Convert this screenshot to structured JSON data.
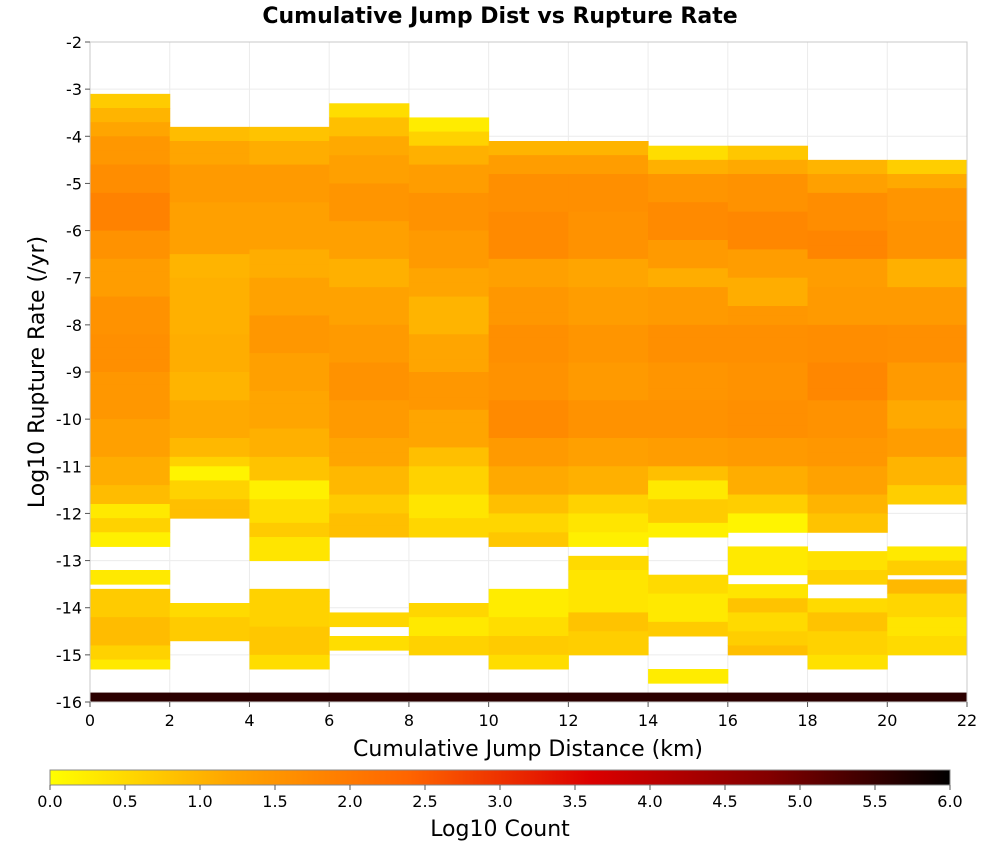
{
  "chart_data": {
    "type": "heatmap",
    "title": "Cumulative Jump Dist vs Rupture Rate",
    "xlabel": "Cumulative Jump Distance (km)",
    "ylabel": "Log10 Rupture Rate (/yr)",
    "xlim": [
      0,
      22
    ],
    "ylim": [
      -16,
      -2
    ],
    "x_ticks": [
      "0",
      "2",
      "4",
      "6",
      "8",
      "10",
      "12",
      "14",
      "16",
      "18",
      "20",
      "22"
    ],
    "y_ticks": [
      "-2",
      "-3",
      "-4",
      "-5",
      "-6",
      "-7",
      "-8",
      "-9",
      "-10",
      "-11",
      "-12",
      "-13",
      "-14",
      "-15",
      "-16"
    ],
    "x_bin_width": 2,
    "y_bin_height": 0.25,
    "grid": true,
    "colorbar": {
      "label": "Log10 Count",
      "range": [
        0,
        6
      ],
      "ticks": [
        "0.0",
        "0.5",
        "1.0",
        "1.5",
        "2.0",
        "2.5",
        "3.0",
        "3.5",
        "4.0",
        "4.5",
        "5.0",
        "5.5",
        "6.0"
      ],
      "colors": [
        "#ffff00",
        "#ffa500",
        "#ff6400",
        "#dc0000",
        "#820000",
        "#000000"
      ]
    },
    "bottom_row": {
      "y_range": [
        -16,
        -15.8
      ],
      "value": 5.6
    },
    "columns": [
      {
        "x_range": [
          0,
          2
        ],
        "runs": [
          [
            -3.4,
            0.3,
            0.7
          ],
          [
            -3.7,
            0.3,
            1.0
          ],
          [
            -4.0,
            0.3,
            1.2
          ],
          [
            -4.6,
            0.6,
            1.45
          ],
          [
            -5.2,
            0.6,
            1.65
          ],
          [
            -6.0,
            0.8,
            1.85
          ],
          [
            -6.6,
            0.6,
            1.55
          ],
          [
            -7.4,
            0.8,
            1.35
          ],
          [
            -8.2,
            0.8,
            1.55
          ],
          [
            -9.0,
            0.8,
            1.6
          ],
          [
            -10.0,
            1.0,
            1.45
          ],
          [
            -10.8,
            0.8,
            1.3
          ],
          [
            -11.4,
            0.6,
            1.1
          ],
          [
            -11.8,
            0.4,
            0.9
          ],
          [
            -12.1,
            0.3,
            0.3
          ],
          [
            -12.4,
            0.3,
            0.6
          ],
          [
            -12.7,
            0.3,
            0.2
          ],
          [
            -13.5,
            0.3,
            0.3
          ],
          [
            -14.2,
            0.6,
            0.7
          ],
          [
            -14.8,
            0.6,
            0.9
          ],
          [
            -15.1,
            0.3,
            0.6
          ],
          [
            -15.3,
            0.2,
            0.3
          ]
        ]
      },
      {
        "x_range": [
          2,
          4
        ],
        "runs": [
          [
            -4.1,
            0.3,
            0.9
          ],
          [
            -4.6,
            0.5,
            1.2
          ],
          [
            -5.4,
            0.8,
            1.4
          ],
          [
            -6.5,
            1.1,
            1.3
          ],
          [
            -7.0,
            0.5,
            1.0
          ],
          [
            -8.2,
            1.2,
            1.05
          ],
          [
            -9.0,
            0.8,
            1.1
          ],
          [
            -9.6,
            0.6,
            1.0
          ],
          [
            -10.4,
            0.8,
            1.15
          ],
          [
            -10.8,
            0.4,
            0.95
          ],
          [
            -11.0,
            0.2,
            0.6
          ],
          [
            -11.3,
            0.3,
            0.15
          ],
          [
            -11.7,
            0.4,
            0.6
          ],
          [
            -12.1,
            0.4,
            0.85
          ],
          [
            -14.2,
            0.3,
            0.5
          ],
          [
            -14.7,
            0.5,
            0.7
          ]
        ]
      },
      {
        "x_range": [
          4,
          6
        ],
        "runs": [
          [
            -4.1,
            0.3,
            0.8
          ],
          [
            -4.6,
            0.5,
            1.1
          ],
          [
            -5.4,
            0.8,
            1.4
          ],
          [
            -6.4,
            1.0,
            1.3
          ],
          [
            -7.0,
            0.6,
            1.1
          ],
          [
            -7.8,
            0.8,
            1.25
          ],
          [
            -8.6,
            0.8,
            1.45
          ],
          [
            -9.4,
            0.8,
            1.3
          ],
          [
            -10.2,
            0.8,
            1.2
          ],
          [
            -10.8,
            0.6,
            1.05
          ],
          [
            -11.3,
            0.5,
            0.8
          ],
          [
            -11.7,
            0.4,
            0.2
          ],
          [
            -12.2,
            0.5,
            0.45
          ],
          [
            -12.5,
            0.3,
            0.7
          ],
          [
            -13.0,
            0.5,
            0.35
          ],
          [
            -14.4,
            0.8,
            0.6
          ],
          [
            -15.0,
            0.6,
            0.75
          ],
          [
            -15.3,
            0.3,
            0.45
          ]
        ]
      },
      {
        "x_range": [
          6,
          8
        ],
        "runs": [
          [
            -3.6,
            0.3,
            0.45
          ],
          [
            -4.0,
            0.4,
            0.85
          ],
          [
            -4.4,
            0.4,
            1.15
          ],
          [
            -5.0,
            0.6,
            1.3
          ],
          [
            -5.8,
            0.8,
            1.5
          ],
          [
            -6.6,
            0.8,
            1.3
          ],
          [
            -7.2,
            0.6,
            1.05
          ],
          [
            -8.0,
            0.8,
            1.25
          ],
          [
            -8.8,
            0.8,
            1.4
          ],
          [
            -9.6,
            0.8,
            1.55
          ],
          [
            -10.4,
            0.8,
            1.4
          ],
          [
            -11.0,
            0.6,
            1.2
          ],
          [
            -11.6,
            0.6,
            0.95
          ],
          [
            -12.0,
            0.4,
            0.7
          ],
          [
            -12.5,
            0.5,
            0.85
          ],
          [
            -14.4,
            0.3,
            0.55
          ],
          [
            -14.9,
            0.3,
            0.45
          ]
        ]
      },
      {
        "x_range": [
          8,
          10
        ],
        "runs": [
          [
            -3.9,
            0.3,
            0.25
          ],
          [
            -4.2,
            0.3,
            0.6
          ],
          [
            -4.6,
            0.4,
            1.05
          ],
          [
            -5.2,
            0.6,
            1.35
          ],
          [
            -6.0,
            0.8,
            1.55
          ],
          [
            -6.8,
            0.8,
            1.4
          ],
          [
            -7.4,
            0.6,
            1.2
          ],
          [
            -8.2,
            0.8,
            1.0
          ],
          [
            -9.0,
            0.8,
            1.2
          ],
          [
            -9.8,
            0.8,
            1.45
          ],
          [
            -10.6,
            0.8,
            1.2
          ],
          [
            -11.0,
            0.4,
            0.85
          ],
          [
            -11.6,
            0.6,
            0.6
          ],
          [
            -12.1,
            0.5,
            0.35
          ],
          [
            -12.5,
            0.4,
            0.55
          ],
          [
            -14.2,
            0.3,
            0.55
          ],
          [
            -14.6,
            0.4,
            0.3
          ],
          [
            -15.0,
            0.4,
            0.6
          ]
        ]
      },
      {
        "x_range": [
          10,
          12
        ],
        "runs": [
          [
            -4.4,
            0.3,
            1.0
          ],
          [
            -4.8,
            0.4,
            1.35
          ],
          [
            -5.6,
            0.8,
            1.6
          ],
          [
            -6.6,
            1.0,
            1.7
          ],
          [
            -7.2,
            0.6,
            1.3
          ],
          [
            -8.0,
            0.8,
            1.45
          ],
          [
            -8.8,
            0.8,
            1.6
          ],
          [
            -9.6,
            0.8,
            1.55
          ],
          [
            -10.4,
            0.8,
            1.7
          ],
          [
            -11.0,
            0.6,
            1.4
          ],
          [
            -11.6,
            0.6,
            1.15
          ],
          [
            -12.0,
            0.4,
            0.85
          ],
          [
            -12.4,
            0.4,
            0.55
          ],
          [
            -12.7,
            0.3,
            0.75
          ],
          [
            -14.2,
            0.6,
            0.25
          ],
          [
            -14.6,
            0.4,
            0.45
          ],
          [
            -15.0,
            0.4,
            0.7
          ],
          [
            -15.3,
            0.3,
            0.45
          ]
        ]
      },
      {
        "x_range": [
          12,
          14
        ],
        "runs": [
          [
            -4.4,
            0.3,
            1.0
          ],
          [
            -4.8,
            0.4,
            1.35
          ],
          [
            -5.6,
            0.8,
            1.6
          ],
          [
            -6.6,
            1.0,
            1.55
          ],
          [
            -7.2,
            0.6,
            1.2
          ],
          [
            -8.0,
            0.8,
            1.35
          ],
          [
            -8.8,
            0.8,
            1.5
          ],
          [
            -9.6,
            0.8,
            1.4
          ],
          [
            -10.4,
            0.8,
            1.55
          ],
          [
            -11.0,
            0.6,
            1.3
          ],
          [
            -11.6,
            0.6,
            1.05
          ],
          [
            -12.0,
            0.4,
            0.6
          ],
          [
            -12.4,
            0.4,
            0.35
          ],
          [
            -12.7,
            0.3,
            0.2
          ],
          [
            -13.2,
            0.3,
            0.5
          ],
          [
            -13.5,
            0.3,
            0.35
          ],
          [
            -14.1,
            0.6,
            0.35
          ],
          [
            -14.5,
            0.4,
            0.8
          ],
          [
            -15.0,
            0.5,
            0.65
          ]
        ]
      },
      {
        "x_range": [
          14,
          16
        ],
        "runs": [
          [
            -4.5,
            0.3,
            0.45
          ],
          [
            -4.8,
            0.3,
            1.05
          ],
          [
            -5.4,
            0.6,
            1.5
          ],
          [
            -6.2,
            0.8,
            1.7
          ],
          [
            -6.8,
            0.6,
            1.4
          ],
          [
            -7.2,
            0.4,
            1.1
          ],
          [
            -8.0,
            0.8,
            1.4
          ],
          [
            -8.8,
            0.8,
            1.6
          ],
          [
            -9.6,
            0.8,
            1.5
          ],
          [
            -10.4,
            0.8,
            1.55
          ],
          [
            -11.0,
            0.6,
            1.35
          ],
          [
            -11.3,
            0.3,
            0.85
          ],
          [
            -11.7,
            0.4,
            0.3
          ],
          [
            -12.2,
            0.5,
            0.7
          ],
          [
            -12.5,
            0.3,
            0.2
          ],
          [
            -13.7,
            0.4,
            0.5
          ],
          [
            -14.3,
            0.6,
            0.3
          ],
          [
            -14.6,
            0.3,
            0.7
          ],
          [
            -15.6,
            0.3,
            0.25
          ]
        ]
      },
      {
        "x_range": [
          16,
          18
        ],
        "runs": [
          [
            -4.5,
            0.3,
            0.75
          ],
          [
            -4.8,
            0.3,
            1.15
          ],
          [
            -5.6,
            0.8,
            1.55
          ],
          [
            -6.4,
            0.8,
            1.75
          ],
          [
            -7.0,
            0.6,
            1.35
          ],
          [
            -7.6,
            0.6,
            1.1
          ],
          [
            -8.0,
            0.4,
            1.45
          ],
          [
            -8.8,
            0.8,
            1.6
          ],
          [
            -9.6,
            0.8,
            1.55
          ],
          [
            -10.4,
            0.8,
            1.6
          ],
          [
            -11.0,
            0.6,
            1.4
          ],
          [
            -11.6,
            0.6,
            1.1
          ],
          [
            -12.0,
            0.4,
            0.65
          ],
          [
            -12.4,
            0.4,
            0.15
          ],
          [
            -13.3,
            0.6,
            0.3
          ],
          [
            -13.8,
            0.3,
            0.35
          ],
          [
            -14.1,
            0.3,
            0.8
          ],
          [
            -14.5,
            0.4,
            0.5
          ],
          [
            -14.8,
            0.3,
            0.65
          ],
          [
            -15.0,
            0.2,
            0.85
          ]
        ]
      },
      {
        "x_range": [
          18,
          20
        ],
        "runs": [
          [
            -4.8,
            0.3,
            1.0
          ],
          [
            -5.2,
            0.4,
            1.3
          ],
          [
            -6.0,
            0.8,
            1.65
          ],
          [
            -6.6,
            0.6,
            1.8
          ],
          [
            -7.2,
            0.6,
            1.35
          ],
          [
            -8.0,
            0.8,
            1.4
          ],
          [
            -8.8,
            0.8,
            1.65
          ],
          [
            -9.6,
            0.8,
            1.75
          ],
          [
            -10.4,
            0.8,
            1.55
          ],
          [
            -11.0,
            0.6,
            1.45
          ],
          [
            -11.6,
            0.6,
            1.25
          ],
          [
            -12.0,
            0.4,
            1.0
          ],
          [
            -12.4,
            0.4,
            0.8
          ],
          [
            -13.2,
            0.4,
            0.4
          ],
          [
            -13.5,
            0.3,
            0.6
          ],
          [
            -14.1,
            0.3,
            0.5
          ],
          [
            -14.5,
            0.4,
            0.8
          ],
          [
            -15.0,
            0.5,
            0.6
          ],
          [
            -15.3,
            0.3,
            0.4
          ]
        ]
      },
      {
        "x_range": [
          20,
          22
        ],
        "runs": [
          [
            -4.8,
            0.3,
            0.65
          ],
          [
            -5.1,
            0.3,
            1.15
          ],
          [
            -5.8,
            0.7,
            1.5
          ],
          [
            -6.6,
            0.8,
            1.55
          ],
          [
            -7.2,
            0.6,
            1.05
          ],
          [
            -8.0,
            0.8,
            1.4
          ],
          [
            -8.8,
            0.8,
            1.6
          ],
          [
            -9.6,
            0.8,
            1.4
          ],
          [
            -10.2,
            0.6,
            1.15
          ],
          [
            -10.8,
            0.6,
            1.35
          ],
          [
            -11.4,
            0.6,
            1.0
          ],
          [
            -11.8,
            0.4,
            0.65
          ],
          [
            -13.0,
            0.3,
            0.3
          ],
          [
            -13.3,
            0.3,
            0.65
          ],
          [
            -13.7,
            0.3,
            0.95
          ],
          [
            -14.2,
            0.5,
            0.55
          ],
          [
            -14.6,
            0.4,
            0.35
          ],
          [
            -15.0,
            0.4,
            0.5
          ]
        ]
      }
    ]
  }
}
